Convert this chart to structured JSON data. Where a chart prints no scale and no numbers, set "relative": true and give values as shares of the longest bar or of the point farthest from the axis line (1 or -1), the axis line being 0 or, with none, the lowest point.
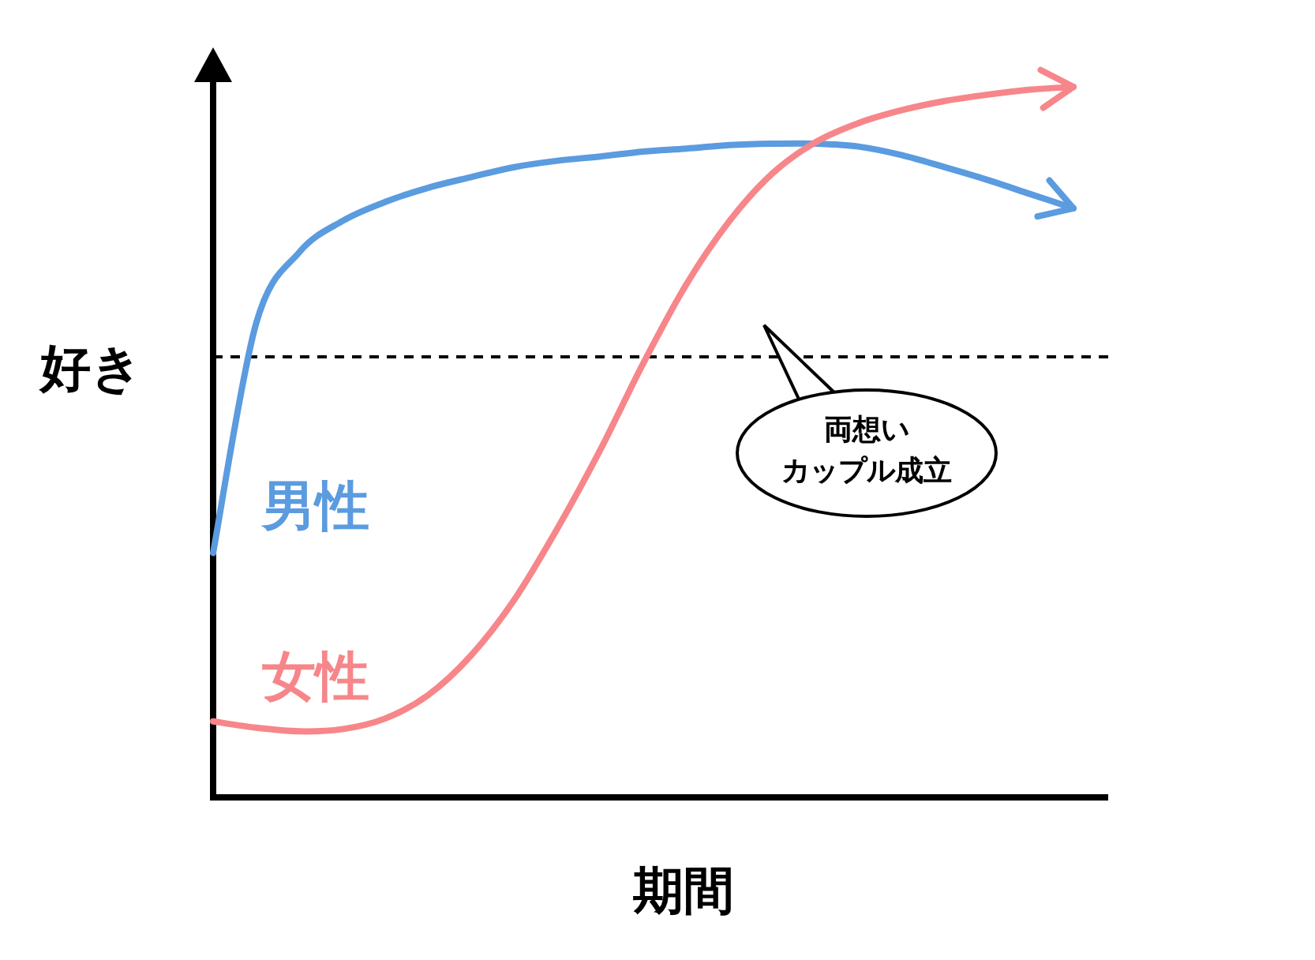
{
  "chart_data": {
    "type": "line",
    "relative": true,
    "xlabel": "期間",
    "ylabel": "好き",
    "categories": [
      null,
      null,
      null,
      null,
      null,
      null,
      null,
      null,
      null,
      null,
      null,
      null,
      null,
      null,
      null,
      null,
      null,
      null,
      null,
      null,
      null
    ],
    "series": [
      {
        "name": "男性",
        "color": "#5b9bdf",
        "values": [
          0.344,
          0.667,
          0.767,
          0.811,
          0.838,
          0.858,
          0.873,
          0.887,
          0.896,
          0.902,
          0.909,
          0.913,
          0.918,
          0.92,
          0.92,
          0.916,
          0.904,
          0.887,
          0.869,
          0.849,
          0.829
        ]
      },
      {
        "name": "女性",
        "color": "#f7868a",
        "values": [
          0.107,
          0.098,
          0.093,
          0.096,
          0.111,
          0.144,
          0.2,
          0.278,
          0.378,
          0.489,
          0.611,
          0.722,
          0.811,
          0.878,
          0.922,
          0.949,
          0.967,
          0.98,
          0.989,
          0.996,
          1
        ]
      }
    ],
    "ref_lines": [
      {
        "axis": "y",
        "value": 0.62,
        "label": "両想いカップル成立",
        "color": "#000000",
        "line_style": "dashed"
      }
    ]
  }
}
